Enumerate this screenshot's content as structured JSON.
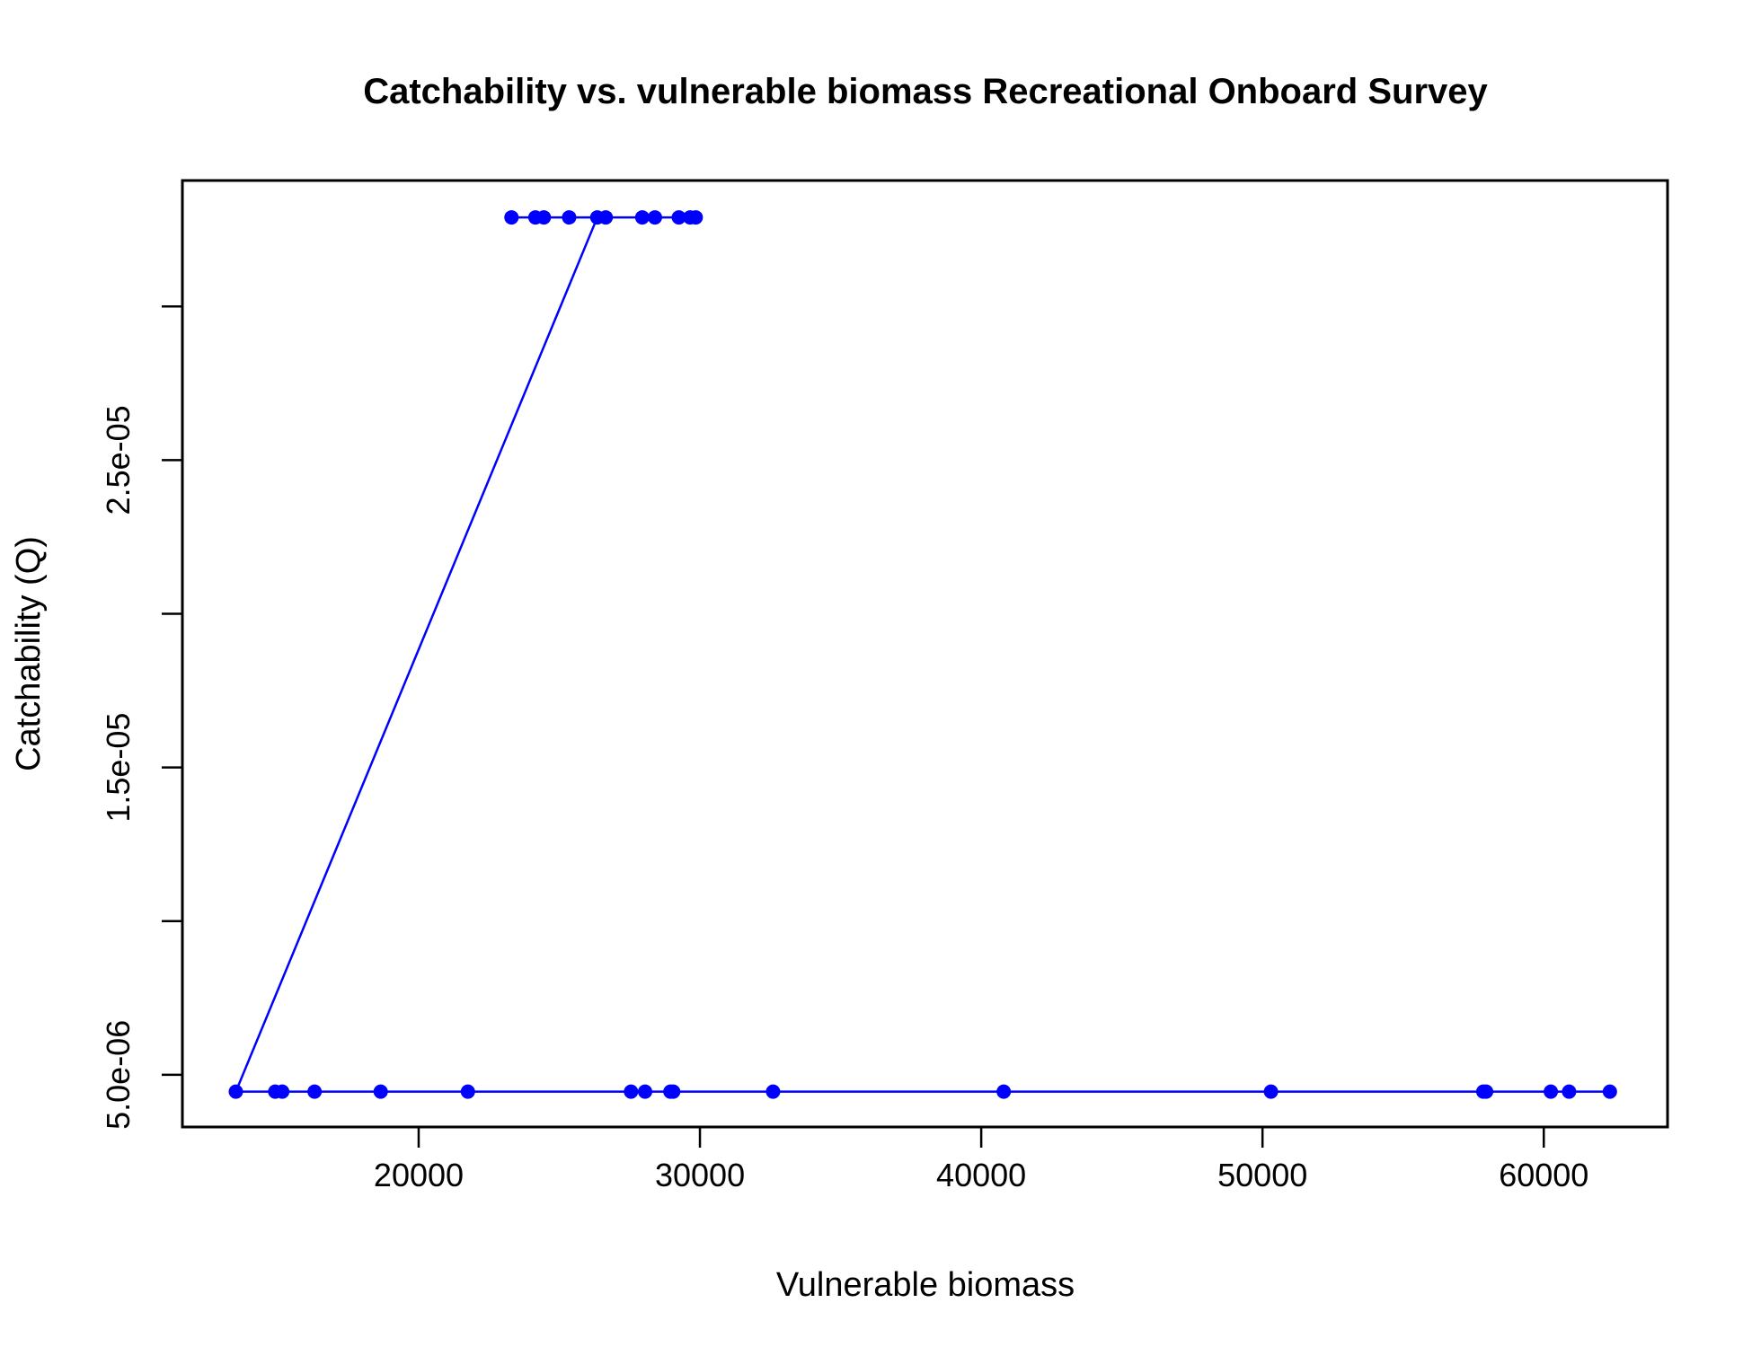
{
  "chart_data": {
    "type": "line",
    "title": "Catchability vs. vulnerable biomass Recreational Onboard Survey",
    "xlabel": "Vulnerable biomass",
    "ylabel": "Catchability (Q)",
    "xlim": [
      11600,
      64400
    ],
    "ylim": [
      3.3e-06,
      3.41e-05
    ],
    "x_ticks": [
      20000,
      30000,
      40000,
      50000,
      60000
    ],
    "x_tick_labels": [
      "20000",
      "30000",
      "40000",
      "50000",
      "60000"
    ],
    "y_ticks": [
      5e-06,
      1e-05,
      1.5e-05,
      2e-05,
      2.5e-05,
      3e-05
    ],
    "y_tick_labels": [
      "5.0e-06",
      "",
      "1.5e-05",
      "",
      "2.5e-05",
      ""
    ],
    "grid": false,
    "color": "#0000ff",
    "series": [
      {
        "x": [
          62350,
          60900,
          60250,
          57950,
          57850,
          50300,
          40800,
          32600,
          29050,
          28950,
          28050,
          27550,
          21750,
          18650,
          16300,
          15150,
          14900,
          13500,
          26350,
          26650,
          29850,
          29650,
          29250,
          27950,
          28400,
          25350,
          24450,
          24150,
          23300
        ],
        "y": [
          4.45e-06,
          4.45e-06,
          4.45e-06,
          4.45e-06,
          4.45e-06,
          4.45e-06,
          4.45e-06,
          4.45e-06,
          4.45e-06,
          4.45e-06,
          4.45e-06,
          4.45e-06,
          4.45e-06,
          4.45e-06,
          4.45e-06,
          4.45e-06,
          4.45e-06,
          4.45e-06,
          3.29e-05,
          3.29e-05,
          3.29e-05,
          3.29e-05,
          3.29e-05,
          3.29e-05,
          3.29e-05,
          3.29e-05,
          3.29e-05,
          3.29e-05,
          3.29e-05
        ]
      }
    ]
  }
}
